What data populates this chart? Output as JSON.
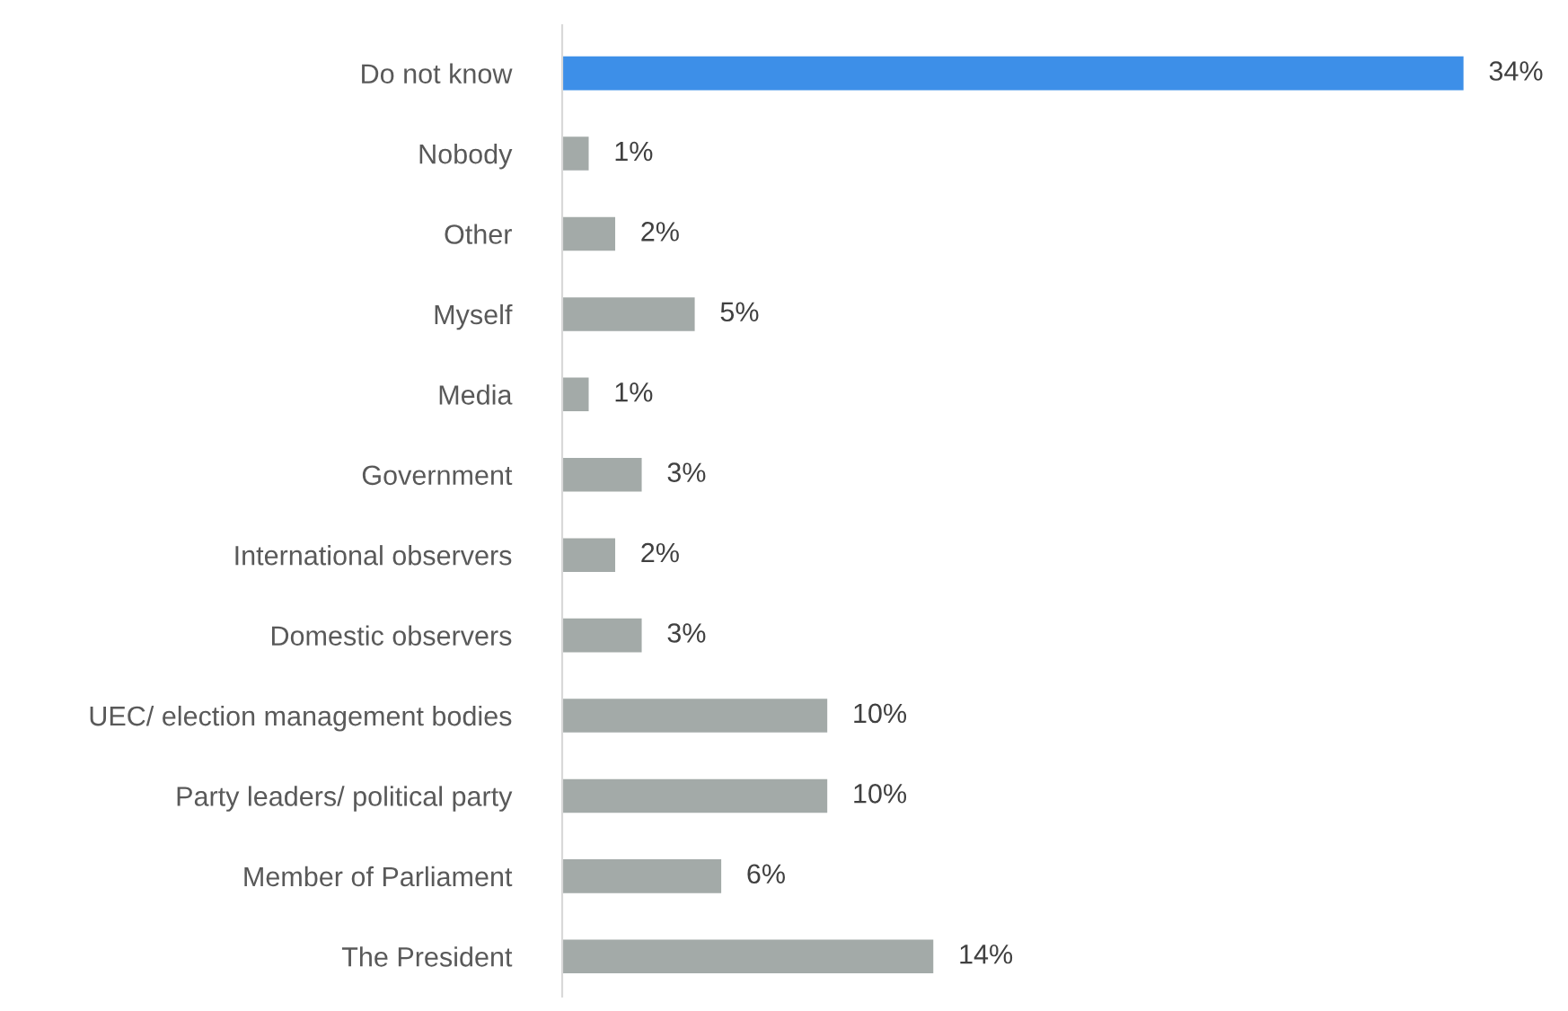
{
  "chart_data": {
    "type": "bar",
    "orientation": "horizontal",
    "categories": [
      "Do not know",
      "Nobody",
      "Other",
      "Myself",
      "Media",
      "Government",
      "International observers",
      "Domestic observers",
      "UEC/ election management bodies",
      "Party leaders/ political party",
      "Member of Parliament",
      "The President"
    ],
    "values": [
      34,
      1,
      2,
      5,
      1,
      3,
      2,
      3,
      10,
      10,
      6,
      14
    ],
    "colors": [
      "#3d8fe8",
      "#a3aaa8",
      "#a3aaa8",
      "#a3aaa8",
      "#a3aaa8",
      "#a3aaa8",
      "#a3aaa8",
      "#a3aaa8",
      "#a3aaa8",
      "#a3aaa8",
      "#a3aaa8",
      "#a3aaa8"
    ],
    "value_labels": [
      "34%",
      "1%",
      "2%",
      "5%",
      "1%",
      "3%",
      "2%",
      "3%",
      "10%",
      "10%",
      "6%",
      "14%"
    ],
    "grid": false,
    "legend": false
  }
}
